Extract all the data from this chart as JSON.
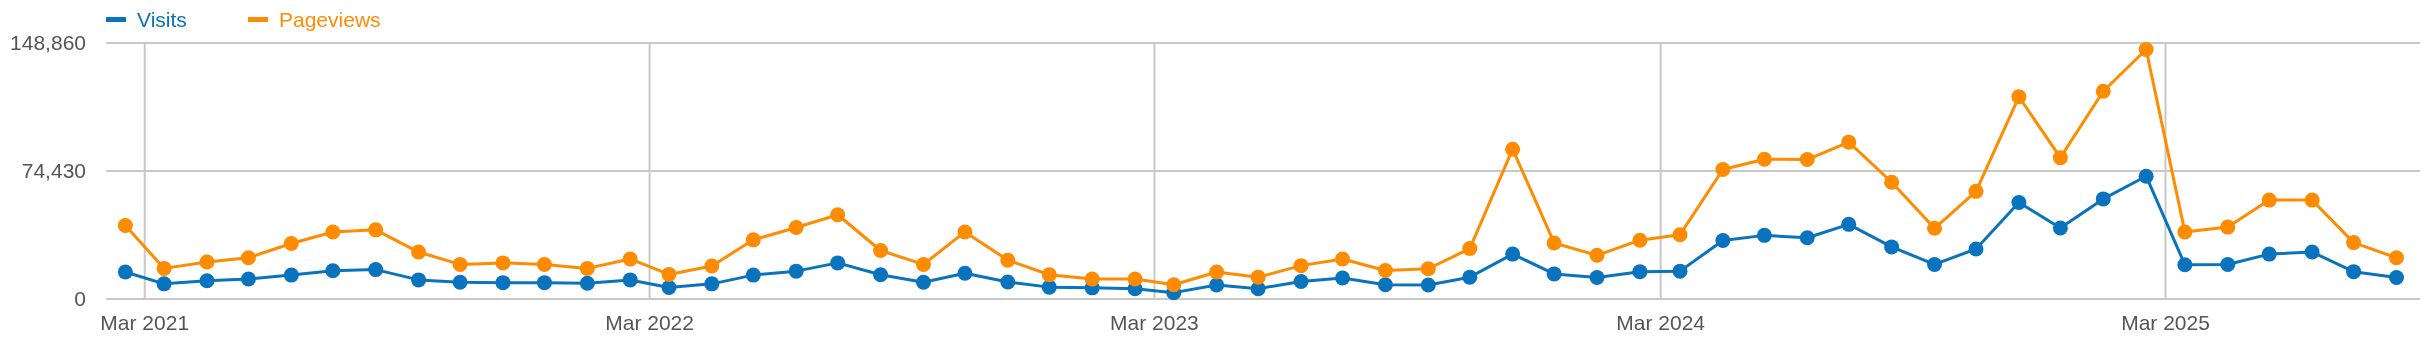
{
  "chart_data": {
    "type": "line",
    "x": [
      "2021-02-15",
      "2021-03-15",
      "2021-04-15",
      "2021-05-15",
      "2021-06-15",
      "2021-07-15",
      "2021-08-15",
      "2021-09-15",
      "2021-10-15",
      "2021-11-15",
      "2021-12-15",
      "2022-01-15",
      "2022-02-15",
      "2022-03-15",
      "2022-04-15",
      "2022-05-15",
      "2022-06-15",
      "2022-07-15",
      "2022-08-15",
      "2022-09-15",
      "2022-10-15",
      "2022-11-15",
      "2022-12-15",
      "2023-01-15",
      "2023-02-15",
      "2023-03-15",
      "2023-04-15",
      "2023-05-15",
      "2023-06-15",
      "2023-07-15",
      "2023-08-15",
      "2023-09-15",
      "2023-10-15",
      "2023-11-15",
      "2023-12-15",
      "2024-01-15",
      "2024-02-15",
      "2024-03-15",
      "2024-04-15",
      "2024-05-15",
      "2024-06-15",
      "2024-07-15",
      "2024-08-15",
      "2024-09-15",
      "2024-10-15",
      "2024-11-15",
      "2024-12-15",
      "2025-01-15",
      "2025-02-15",
      "2025-03-15",
      "2025-04-15",
      "2025-05-15",
      "2025-06-15",
      "2025-07-15",
      "2025-08-15"
    ],
    "series": [
      {
        "name": "Visits",
        "color": "#0a73bd",
        "values": [
          15700,
          8800,
          10600,
          11600,
          13900,
          16400,
          17100,
          11100,
          9700,
          9500,
          9500,
          9200,
          11100,
          6700,
          8800,
          13900,
          16200,
          21000,
          14100,
          9700,
          15000,
          9900,
          6900,
          6500,
          6000,
          3700,
          8100,
          6000,
          10200,
          12200,
          8300,
          8100,
          12700,
          26100,
          14600,
          12500,
          15900,
          16200,
          34000,
          37000,
          35600,
          43400,
          30300,
          20100,
          29100,
          56100,
          41300,
          58200,
          71400,
          19900,
          20100,
          26100,
          27300,
          15900,
          12500
        ]
      },
      {
        "name": "Pageviews",
        "color": "#ff8c00",
        "values": [
          42700,
          17800,
          21500,
          24000,
          32300,
          39000,
          40200,
          27300,
          20100,
          21000,
          20100,
          17800,
          23300,
          14300,
          19200,
          34400,
          41600,
          49000,
          28200,
          20100,
          39000,
          22600,
          14100,
          11600,
          11600,
          8300,
          15700,
          12700,
          19400,
          23300,
          16600,
          17600,
          29300,
          87100,
          32600,
          25400,
          34200,
          37400,
          75300,
          81300,
          81100,
          91200,
          67900,
          41100,
          62600,
          117600,
          82200,
          120800,
          145100,
          39000,
          41800,
          57500,
          57500,
          32800,
          24000
        ]
      }
    ],
    "xlim": [
      "2021-02-01",
      "2025-09-01"
    ],
    "xticks": [
      {
        "value": "2021-03-01",
        "label": "Mar 2021"
      },
      {
        "value": "2022-03-01",
        "label": "Mar 2022"
      },
      {
        "value": "2023-03-01",
        "label": "Mar 2023"
      },
      {
        "value": "2024-03-01",
        "label": "Mar 2024"
      },
      {
        "value": "2025-03-01",
        "label": "Mar 2025"
      }
    ],
    "ylim": [
      0,
      148860
    ],
    "yticks": [
      {
        "value": 0,
        "label": "0"
      },
      {
        "value": 74430,
        "label": "74,430"
      },
      {
        "value": 148860,
        "label": "148,860"
      }
    ],
    "grid": true,
    "legend": "top left",
    "marker": "circle",
    "line_style": "solid"
  }
}
